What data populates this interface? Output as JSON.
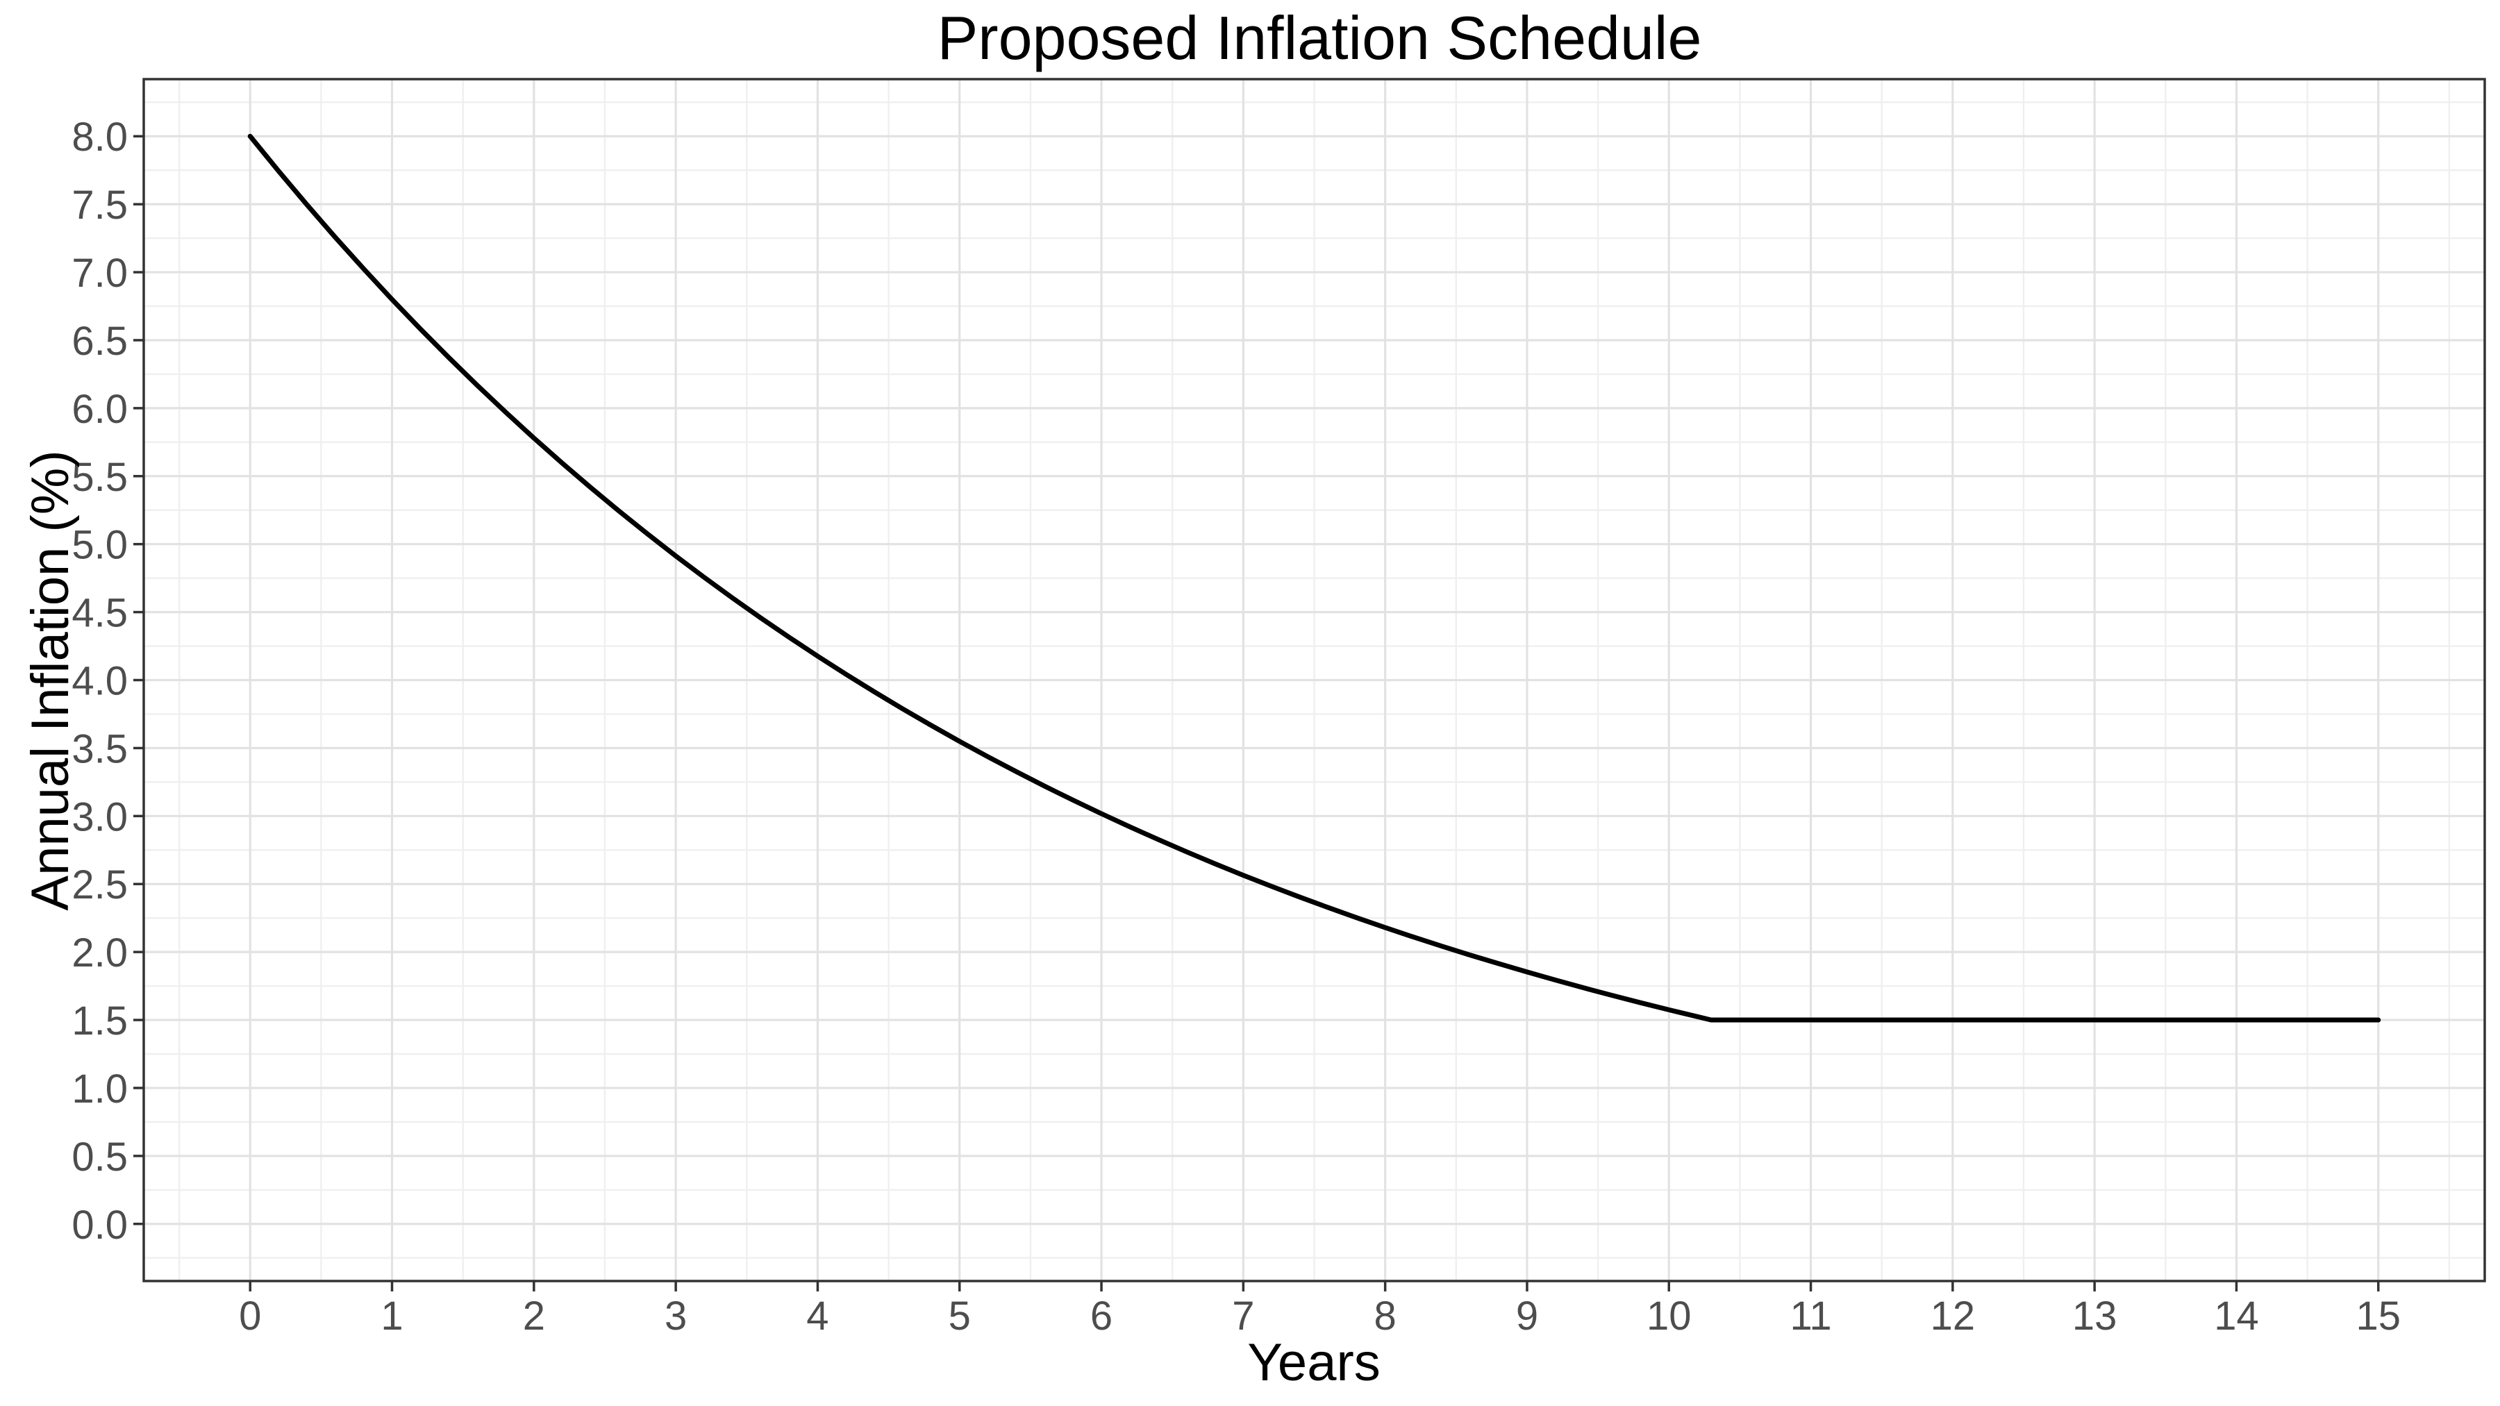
{
  "chart_data": {
    "type": "line",
    "title": "Proposed Inflation Schedule",
    "xlabel": "Years",
    "ylabel": "Annual Inflation (%)",
    "xlim": [
      -0.75,
      15.75
    ],
    "ylim": [
      -0.42,
      8.42
    ],
    "x_ticks": [
      0,
      1,
      2,
      3,
      4,
      5,
      6,
      7,
      8,
      9,
      10,
      11,
      12,
      13,
      14,
      15
    ],
    "x_tick_labels": [
      "0",
      "1",
      "2",
      "3",
      "4",
      "5",
      "6",
      "7",
      "8",
      "9",
      "10",
      "11",
      "12",
      "13",
      "14",
      "15"
    ],
    "y_ticks": [
      0.0,
      0.5,
      1.0,
      1.5,
      2.0,
      2.5,
      3.0,
      3.5,
      4.0,
      4.5,
      5.0,
      5.5,
      6.0,
      6.5,
      7.0,
      7.5,
      8.0
    ],
    "y_tick_labels": [
      "0.0",
      "0.5",
      "1.0",
      "1.5",
      "2.0",
      "2.5",
      "3.0",
      "3.5",
      "4.0",
      "4.5",
      "5.0",
      "5.5",
      "6.0",
      "6.5",
      "7.0",
      "7.5",
      "8.0"
    ],
    "x_minor_ticks": [
      -0.5,
      0.5,
      1.5,
      2.5,
      3.5,
      4.5,
      5.5,
      6.5,
      7.5,
      8.5,
      9.5,
      10.5,
      11.5,
      12.5,
      13.5,
      14.5,
      15.5
    ],
    "y_minor_ticks": [
      -0.25,
      0.25,
      0.75,
      1.25,
      1.75,
      2.25,
      2.75,
      3.25,
      3.75,
      4.25,
      4.75,
      5.25,
      5.75,
      6.25,
      6.75,
      7.25,
      7.75,
      8.25
    ],
    "grid": "major+minor",
    "legend": "none",
    "series": [
      {
        "name": "annual-inflation-schedule",
        "x": [
          0.0,
          0.2,
          0.4,
          0.6,
          0.8,
          1.0,
          1.2,
          1.4,
          1.6,
          1.8,
          2.0,
          2.2,
          2.4,
          2.6,
          2.8,
          3.0,
          3.2,
          3.4,
          3.6,
          3.8,
          4.0,
          4.2,
          4.4,
          4.6,
          4.8,
          5.0,
          5.2,
          5.4,
          5.6,
          5.8,
          6.0,
          6.2,
          6.4,
          6.6,
          6.8,
          7.0,
          7.2,
          7.4,
          7.6,
          7.8,
          8.0,
          8.2,
          8.4,
          8.6,
          8.8,
          9.0,
          9.2,
          9.4,
          9.6,
          9.8,
          10.0,
          10.2,
          10.297,
          11.0,
          12.0,
          13.0,
          14.0,
          15.0
        ],
        "y": [
          8.0,
          7.7442,
          7.4965,
          7.2567,
          7.0247,
          6.8,
          6.5825,
          6.3721,
          6.1683,
          5.971,
          5.7801,
          5.5952,
          5.4162,
          5.243,
          5.0753,
          4.913,
          4.7559,
          4.6038,
          4.4565,
          4.314,
          4.1761,
          4.0425,
          3.9132,
          3.7881,
          3.6669,
          3.5496,
          3.4361,
          3.3262,
          3.2199,
          3.1169,
          3.0172,
          2.9207,
          2.8273,
          2.7369,
          2.6493,
          2.5646,
          2.4826,
          2.4032,
          2.3263,
          2.2519,
          2.1799,
          2.1102,
          2.0427,
          1.9774,
          1.9142,
          1.8529,
          1.7937,
          1.7363,
          1.6808,
          1.627,
          1.575,
          1.5246,
          1.5,
          1.5,
          1.5,
          1.5,
          1.5,
          1.5
        ]
      }
    ],
    "colors": {
      "line": "#000000",
      "major_grid": "#E2E2E2",
      "minor_grid": "#EFEFEF",
      "panel_border": "#333333",
      "panel_background": "#FFFFFF",
      "tick_mark": "#333333",
      "tick_label": "#4D4D4D",
      "title_text": "#000000",
      "page_background": "#FFFFFF"
    }
  }
}
